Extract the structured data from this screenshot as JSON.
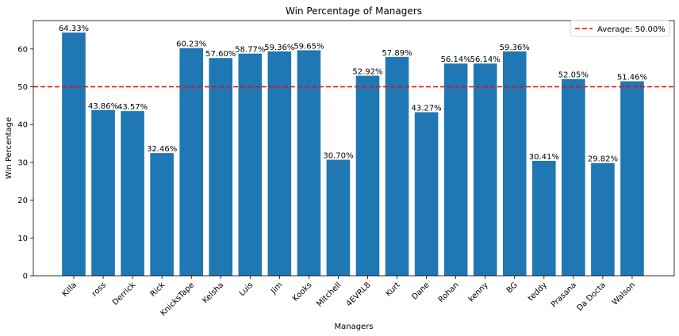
{
  "chart_data": {
    "type": "bar",
    "title": "Win Percentage of Managers",
    "xlabel": "Managers",
    "ylabel": "Win Percentage",
    "ylim": [
      0,
      67.5
    ],
    "yticks": [
      0,
      10,
      20,
      30,
      40,
      50,
      60
    ],
    "grid": false,
    "legend_position": "top-right",
    "bar_color": "#1f77b4",
    "categories": [
      "Killa",
      "ross",
      "Derrick",
      "Rick",
      "KnicksTape",
      "Kelsha",
      "Luis",
      "Jim",
      "Kooks",
      "Mitchell",
      "4EVRL8",
      "Kurt",
      "Dane",
      "Rohan",
      "kenny",
      "BG",
      "teddy",
      "Prasana",
      "Da Docta",
      "Walson"
    ],
    "values": [
      64.33,
      43.86,
      43.57,
      32.46,
      60.23,
      57.6,
      58.77,
      59.36,
      59.65,
      30.7,
      52.92,
      57.89,
      43.27,
      56.14,
      56.14,
      59.36,
      30.41,
      52.05,
      29.82,
      51.46
    ],
    "value_labels": [
      "64.33%",
      "43.86%",
      "43.57%",
      "32.46%",
      "60.23%",
      "57.60%",
      "58.77%",
      "59.36%",
      "59.65%",
      "30.70%",
      "52.92%",
      "57.89%",
      "43.27%",
      "56.14%",
      "56.14%",
      "59.36%",
      "30.41%",
      "52.05%",
      "29.82%",
      "51.46%"
    ],
    "reference_line": {
      "value": 50,
      "label": "Average: 50.00%",
      "color": "#ff0000",
      "style": "dashed"
    }
  }
}
